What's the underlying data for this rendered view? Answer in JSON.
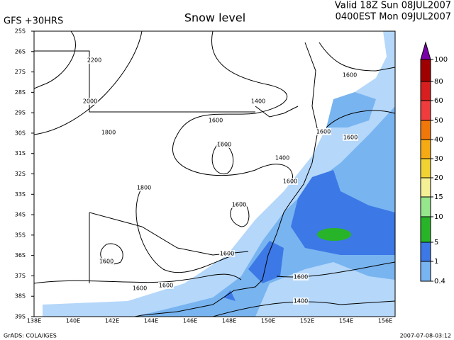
{
  "header": {
    "model": "GFS +30HRS",
    "title": "Snow level",
    "valid": "Valid 18Z Sun 08JUL2007",
    "local": "0400EST Mon 09JUL2007"
  },
  "map": {
    "lat_labels": [
      "25S",
      "26S",
      "27S",
      "28S",
      "29S",
      "30S",
      "31S",
      "32S",
      "33S",
      "34S",
      "35S",
      "36S",
      "37S",
      "38S",
      "39S"
    ],
    "lon_labels": [
      "138E",
      "140E",
      "142E",
      "144E",
      "146E",
      "148E",
      "150E",
      "152E",
      "154E",
      "156E"
    ],
    "contour_labels": [
      "2200",
      "2000",
      "1800",
      "1400",
      "1600",
      "1600",
      "1400",
      "1600",
      "1600",
      "1600",
      "1600",
      "1800",
      "1600",
      "1600",
      "1600",
      "1600",
      "1600",
      "1600",
      "1400"
    ]
  },
  "colorbar": {
    "labels": [
      100,
      80,
      60,
      50,
      40,
      30,
      20,
      15,
      10,
      5,
      1,
      0.4
    ],
    "colors": [
      "#7a00a8",
      "#a00000",
      "#d81e1e",
      "#f03c3c",
      "#f0780a",
      "#f5aa14",
      "#f0d232",
      "#f5f096",
      "#96e68c",
      "#28b428",
      "#3c78e6",
      "#78b4f0",
      "#b4d7fa"
    ]
  },
  "footer": {
    "software": "GrADS: COLA/IGES",
    "timestamp": "2007-07-08-03:12"
  }
}
